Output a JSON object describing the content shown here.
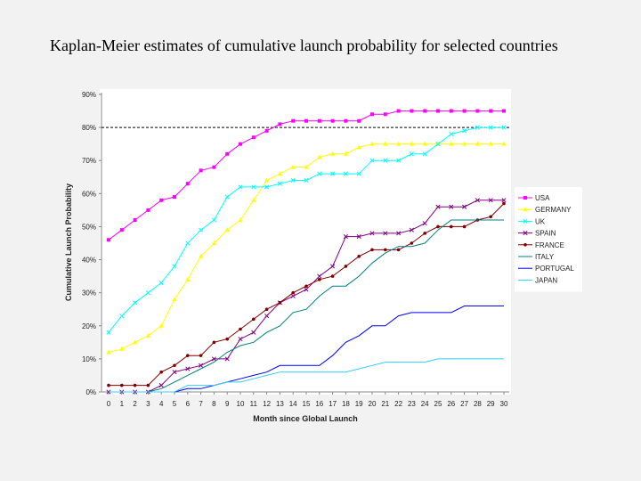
{
  "slide": {
    "title": "Kaplan-Meier estimates of cumulative launch probability for selected countries"
  },
  "chart_data": {
    "type": "line",
    "title": "",
    "xlabel": "Month since Global Launch",
    "ylabel": "Cumulative Launch Probability",
    "x": [
      0,
      1,
      2,
      3,
      4,
      5,
      6,
      7,
      8,
      9,
      10,
      11,
      12,
      13,
      14,
      15,
      16,
      17,
      18,
      19,
      20,
      21,
      22,
      23,
      24,
      25,
      26,
      27,
      28,
      29,
      30
    ],
    "xlim": [
      0,
      30
    ],
    "ylim": [
      0,
      0.9
    ],
    "yticks": [
      "0%",
      "10%",
      "20%",
      "30%",
      "40%",
      "50%",
      "60%",
      "70%",
      "80%",
      "90%"
    ],
    "reference_line": 0.8,
    "grid": false,
    "legend_position": "right",
    "series": [
      {
        "name": "USA",
        "color": "#ff00ff",
        "marker": "square",
        "line": true,
        "values": [
          0.46,
          0.49,
          0.52,
          0.55,
          0.58,
          0.59,
          0.63,
          0.67,
          0.68,
          0.72,
          0.75,
          0.77,
          0.79,
          0.81,
          0.82,
          0.82,
          0.82,
          0.82,
          0.82,
          0.82,
          0.84,
          0.84,
          0.85,
          0.85,
          0.85,
          0.85,
          0.85,
          0.85,
          0.85,
          0.85,
          0.85
        ]
      },
      {
        "name": "GERMANY",
        "color": "#ffff00",
        "marker": "triangle",
        "line": true,
        "values": [
          0.12,
          0.13,
          0.15,
          0.17,
          0.2,
          0.28,
          0.34,
          0.41,
          0.45,
          0.49,
          0.52,
          0.58,
          0.64,
          0.66,
          0.68,
          0.68,
          0.71,
          0.72,
          0.72,
          0.74,
          0.75,
          0.75,
          0.75,
          0.75,
          0.75,
          0.75,
          0.75,
          0.75,
          0.75,
          0.75,
          0.75
        ]
      },
      {
        "name": "UK",
        "color": "#00ffff",
        "marker": "x",
        "line": true,
        "values": [
          0.18,
          0.23,
          0.27,
          0.3,
          0.33,
          0.38,
          0.45,
          0.49,
          0.52,
          0.59,
          0.62,
          0.62,
          0.62,
          0.63,
          0.64,
          0.64,
          0.66,
          0.66,
          0.66,
          0.66,
          0.7,
          0.7,
          0.7,
          0.72,
          0.72,
          0.75,
          0.78,
          0.79,
          0.8,
          0.8,
          0.8
        ]
      },
      {
        "name": "SPAIN",
        "color": "#800080",
        "marker": "x",
        "line": true,
        "values": [
          0,
          0,
          0,
          0,
          0.02,
          0.06,
          0.07,
          0.08,
          0.1,
          0.1,
          0.16,
          0.18,
          0.23,
          0.27,
          0.29,
          0.31,
          0.35,
          0.38,
          0.47,
          0.47,
          0.48,
          0.48,
          0.48,
          0.49,
          0.51,
          0.56,
          0.56,
          0.56,
          0.58,
          0.58,
          0.58
        ]
      },
      {
        "name": "FRANCE",
        "color": "#800000",
        "marker": "dot",
        "line": true,
        "values": [
          0.02,
          0.02,
          0.02,
          0.02,
          0.06,
          0.08,
          0.11,
          0.11,
          0.15,
          0.16,
          0.19,
          0.22,
          0.25,
          0.27,
          0.3,
          0.32,
          0.34,
          0.35,
          0.38,
          0.41,
          0.43,
          0.43,
          0.43,
          0.45,
          0.48,
          0.5,
          0.5,
          0.5,
          0.52,
          0.53,
          0.57
        ]
      },
      {
        "name": "ITALY",
        "color": "#008080",
        "marker": "none",
        "line": true,
        "values": [
          0,
          0,
          0,
          0,
          0.01,
          0.03,
          0.05,
          0.07,
          0.09,
          0.12,
          0.14,
          0.15,
          0.18,
          0.2,
          0.24,
          0.25,
          0.29,
          0.32,
          0.32,
          0.35,
          0.39,
          0.42,
          0.44,
          0.44,
          0.45,
          0.49,
          0.52,
          0.52,
          0.52,
          0.52,
          0.52
        ]
      },
      {
        "name": "PORTUGAL",
        "color": "#0000ff",
        "marker": "none",
        "line": true,
        "values": [
          0,
          0,
          0,
          0,
          0,
          0,
          0.01,
          0.01,
          0.02,
          0.03,
          0.04,
          0.05,
          0.06,
          0.08,
          0.08,
          0.08,
          0.08,
          0.11,
          0.15,
          0.17,
          0.2,
          0.2,
          0.23,
          0.24,
          0.24,
          0.24,
          0.24,
          0.26,
          0.26,
          0.26,
          0.26
        ]
      },
      {
        "name": "JAPAN",
        "color": "#33ccff",
        "marker": "none",
        "line": true,
        "values": [
          0,
          0,
          0,
          0,
          0,
          0,
          0.02,
          0.02,
          0.02,
          0.03,
          0.03,
          0.04,
          0.05,
          0.06,
          0.06,
          0.06,
          0.06,
          0.06,
          0.06,
          0.07,
          0.08,
          0.09,
          0.09,
          0.09,
          0.09,
          0.1,
          0.1,
          0.1,
          0.1,
          0.1,
          0.1
        ]
      }
    ]
  }
}
